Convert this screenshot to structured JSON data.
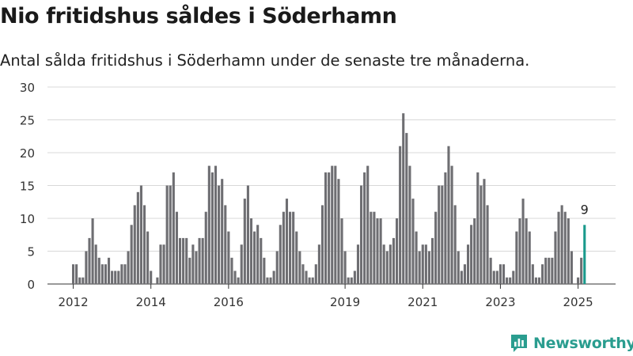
{
  "title": "Nio fritidshus såldes i Söderhamn",
  "subtitle": "Antal sålda fritidshus i Söderhamn under de senaste tre månaderna.",
  "brand": "Newsworthy",
  "colors": {
    "bar": "#6e6e72",
    "highlight": "#1a9a8c",
    "grid": "#d8d8d8",
    "brand": "#2a9d8f"
  },
  "chart_data": {
    "type": "bar",
    "title": "",
    "xlabel": "",
    "ylabel": "",
    "ylim": [
      0,
      30
    ],
    "y_ticks": [
      0,
      5,
      10,
      15,
      20,
      25,
      30
    ],
    "x_tick_labels": [
      {
        "label": "2012",
        "index": 0
      },
      {
        "label": "2014",
        "index": 24
      },
      {
        "label": "2016",
        "index": 48
      },
      {
        "label": "2019",
        "index": 84
      },
      {
        "label": "2021",
        "index": 108
      },
      {
        "label": "2023",
        "index": 132
      },
      {
        "label": "2025",
        "index": 156
      }
    ],
    "start": "2011-11",
    "values": [
      3,
      3,
      1,
      1,
      5,
      7,
      10,
      6,
      4,
      3,
      3,
      4,
      2,
      2,
      2,
      3,
      3,
      5,
      9,
      12,
      14,
      15,
      12,
      8,
      2,
      0,
      1,
      6,
      6,
      15,
      15,
      17,
      11,
      7,
      7,
      7,
      4,
      6,
      5,
      7,
      7,
      11,
      18,
      17,
      18,
      15,
      16,
      12,
      8,
      4,
      2,
      1,
      6,
      13,
      15,
      10,
      8,
      9,
      7,
      4,
      1,
      1,
      2,
      5,
      9,
      11,
      13,
      11,
      11,
      8,
      5,
      3,
      2,
      1,
      1,
      3,
      6,
      12,
      17,
      17,
      18,
      18,
      16,
      10,
      5,
      1,
      1,
      2,
      6,
      15,
      17,
      18,
      11,
      11,
      10,
      10,
      6,
      5,
      6,
      7,
      10,
      21,
      26,
      23,
      18,
      13,
      8,
      5,
      6,
      6,
      5,
      7,
      11,
      15,
      15,
      17,
      21,
      18,
      12,
      5,
      2,
      3,
      6,
      9,
      10,
      17,
      15,
      16,
      12,
      4,
      2,
      2,
      3,
      3,
      1,
      1,
      2,
      8,
      10,
      13,
      10,
      8,
      3,
      1,
      1,
      3,
      4,
      4,
      4,
      8,
      11,
      12,
      11,
      10,
      5,
      0,
      1,
      4,
      9
    ],
    "highlight_last": true,
    "highlight_label": "9"
  }
}
